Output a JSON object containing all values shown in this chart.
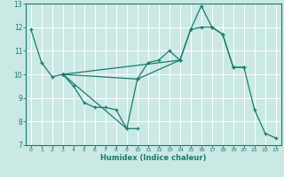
{
  "title": "",
  "xlabel": "Humidex (Indice chaleur)",
  "ylabel": "",
  "xlim": [
    -0.5,
    23.5
  ],
  "ylim": [
    7,
    13
  ],
  "yticks": [
    7,
    8,
    9,
    10,
    11,
    12,
    13
  ],
  "xticks": [
    0,
    1,
    2,
    3,
    4,
    5,
    6,
    7,
    8,
    9,
    10,
    11,
    12,
    13,
    14,
    15,
    16,
    17,
    18,
    19,
    20,
    21,
    22,
    23
  ],
  "bg_color": "#cbe9e4",
  "grid_color": "#ffffff",
  "line_color": "#1a7a6e",
  "series": [
    {
      "x": [
        0,
        1,
        2,
        3
      ],
      "y": [
        11.9,
        10.5,
        9.9,
        10.0
      ]
    },
    {
      "x": [
        3,
        4,
        5,
        6,
        7,
        8,
        9,
        10
      ],
      "y": [
        10.0,
        9.5,
        8.8,
        8.6,
        8.6,
        8.5,
        7.7,
        7.7
      ]
    },
    {
      "x": [
        3,
        10,
        11,
        12,
        13,
        14
      ],
      "y": [
        10.0,
        9.8,
        10.5,
        10.6,
        11.0,
        10.6
      ]
    },
    {
      "x": [
        3,
        14,
        15,
        16,
        17,
        18,
        19,
        20,
        21,
        22,
        23
      ],
      "y": [
        10.0,
        10.6,
        11.9,
        12.0,
        12.0,
        11.7,
        10.3,
        10.3,
        8.5,
        7.5,
        7.3
      ]
    },
    {
      "x": [
        3,
        9,
        10,
        14,
        15,
        16,
        17,
        18,
        19,
        20
      ],
      "y": [
        10.0,
        7.7,
        9.8,
        10.6,
        11.9,
        12.9,
        12.0,
        11.7,
        10.3,
        10.3
      ]
    }
  ]
}
